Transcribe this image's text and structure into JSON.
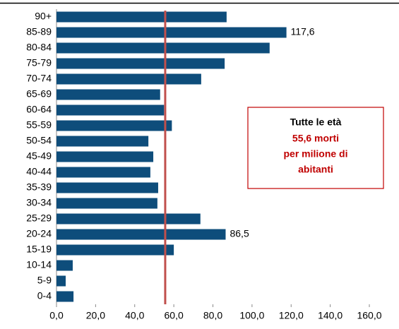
{
  "chart_data": {
    "type": "barh",
    "categories": [
      "90+",
      "85-89",
      "80-84",
      "75-79",
      "70-74",
      "65-69",
      "60-64",
      "55-59",
      "50-54",
      "45-49",
      "40-44",
      "35-39",
      "30-34",
      "25-29",
      "20-24",
      "15-19",
      "10-14",
      "5-9",
      "0-4"
    ],
    "values": [
      87,
      117.6,
      109,
      86,
      74,
      53,
      55,
      59,
      47,
      49.5,
      48,
      52,
      51.6,
      73.6,
      86.5,
      60,
      8.3,
      4.7,
      8.7
    ],
    "value_labels": [
      null,
      "117,6",
      null,
      null,
      null,
      null,
      null,
      null,
      null,
      null,
      null,
      null,
      null,
      null,
      "86,5",
      null,
      null,
      null,
      null
    ],
    "color": "#0e4d7b",
    "xlim": [
      0,
      160
    ],
    "xticks": [
      {
        "value": 0,
        "label": "0,0"
      },
      {
        "value": 20,
        "label": "20,0"
      },
      {
        "value": 40,
        "label": "40,0"
      },
      {
        "value": 60,
        "label": "60,0"
      },
      {
        "value": 80,
        "label": "80,0"
      },
      {
        "value": 100,
        "label": "100,0"
      },
      {
        "value": 120,
        "label": "120,0"
      },
      {
        "value": 140,
        "label": "140,0"
      },
      {
        "value": 160,
        "label": "160,0"
      }
    ],
    "reference_line": {
      "value": 55.6,
      "color": "#c0504d"
    },
    "annotation": {
      "title": "Tutte le età",
      "lines": [
        "55,6 morti",
        "per milione di",
        "abitanti"
      ],
      "color": "#c00000"
    }
  }
}
